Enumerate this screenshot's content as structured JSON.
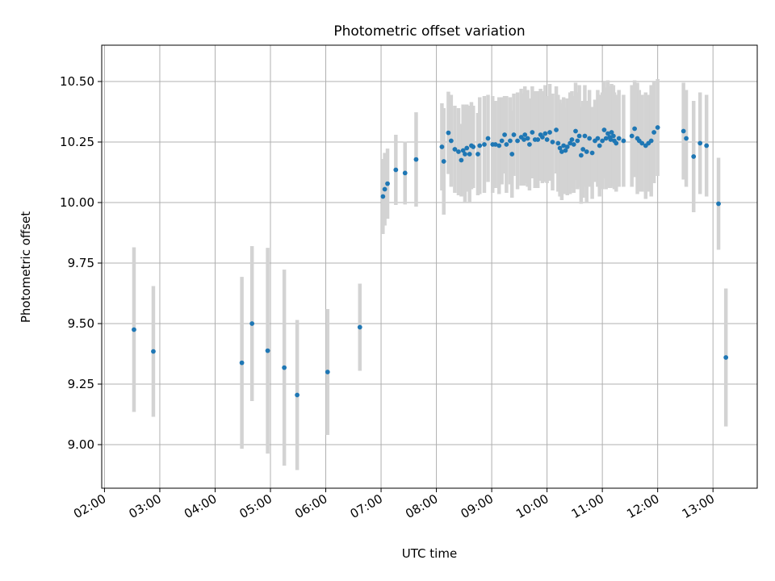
{
  "chart_data": {
    "type": "scatter",
    "title": "Photometric offset variation",
    "xlabel": "UTC time",
    "ylabel": "Photometric offset",
    "x_format": "HH:MM",
    "xlim": [
      "01:57",
      "13:48"
    ],
    "ylim": [
      8.82,
      10.65
    ],
    "xticks": [
      "02:00",
      "03:00",
      "04:00",
      "05:00",
      "06:00",
      "07:00",
      "08:00",
      "09:00",
      "10:00",
      "11:00",
      "12:00",
      "13:00"
    ],
    "yticks": [
      "9.00",
      "9.25",
      "9.50",
      "9.75",
      "10.00",
      "10.25",
      "10.50"
    ],
    "grid": true,
    "error_bars": true,
    "colors": {
      "points": "#1f77b4",
      "error_bars": "#d3d3d3",
      "grid": "#b0b0b0"
    },
    "points": [
      [
        "02:32",
        9.475,
        0.34
      ],
      [
        "02:53",
        9.385,
        0.27
      ],
      [
        "04:29",
        9.338,
        0.355
      ],
      [
        "04:40",
        9.5,
        0.32
      ],
      [
        "04:57",
        9.388,
        0.425
      ],
      [
        "05:15",
        9.318,
        0.405
      ],
      [
        "05:29",
        9.205,
        0.31
      ],
      [
        "06:02",
        9.3,
        0.26
      ],
      [
        "06:37",
        9.485,
        0.18
      ],
      [
        "07:02",
        10.025,
        0.155
      ],
      [
        "07:04",
        10.055,
        0.15
      ],
      [
        "07:07",
        10.078,
        0.145
      ],
      [
        "07:16",
        10.135,
        0.145
      ],
      [
        "07:26",
        10.122,
        0.13
      ],
      [
        "07:38",
        10.178,
        0.195
      ],
      [
        "08:06",
        10.23,
        0.18
      ],
      [
        "08:08",
        10.17,
        0.22
      ],
      [
        "08:13",
        10.288,
        0.17
      ],
      [
        "08:16",
        10.255,
        0.19
      ],
      [
        "08:20",
        10.22,
        0.18
      ],
      [
        "08:24",
        10.21,
        0.18
      ],
      [
        "08:27",
        10.175,
        0.15
      ],
      [
        "08:29",
        10.215,
        0.19
      ],
      [
        "08:31",
        10.2,
        0.2
      ],
      [
        "08:33",
        10.225,
        0.18
      ],
      [
        "08:36",
        10.2,
        0.2
      ],
      [
        "08:38",
        10.235,
        0.18
      ],
      [
        "08:40",
        10.23,
        0.17
      ],
      [
        "08:45",
        10.2,
        0.17
      ],
      [
        "08:47",
        10.235,
        0.2
      ],
      [
        "08:52",
        10.24,
        0.2
      ],
      [
        "08:56",
        10.265,
        0.18
      ],
      [
        "09:01",
        10.24,
        0.2
      ],
      [
        "09:04",
        10.24,
        0.18
      ],
      [
        "09:08",
        10.235,
        0.2
      ],
      [
        "09:11",
        10.255,
        0.18
      ],
      [
        "09:14",
        10.28,
        0.16
      ],
      [
        "09:16",
        10.24,
        0.2
      ],
      [
        "09:20",
        10.255,
        0.18
      ],
      [
        "09:22",
        10.2,
        0.18
      ],
      [
        "09:24",
        10.28,
        0.17
      ],
      [
        "09:28",
        10.255,
        0.2
      ],
      [
        "09:32",
        10.27,
        0.2
      ],
      [
        "09:35",
        10.26,
        0.19
      ],
      [
        "09:36",
        10.28,
        0.2
      ],
      [
        "09:39",
        10.265,
        0.2
      ],
      [
        "09:41",
        10.24,
        0.19
      ],
      [
        "09:44",
        10.29,
        0.19
      ],
      [
        "09:47",
        10.26,
        0.2
      ],
      [
        "09:50",
        10.26,
        0.2
      ],
      [
        "09:53",
        10.28,
        0.19
      ],
      [
        "09:55",
        10.27,
        0.19
      ],
      [
        "09:58",
        10.285,
        0.2
      ],
      [
        "10:00",
        10.26,
        0.18
      ],
      [
        "10:03",
        10.29,
        0.2
      ],
      [
        "10:06",
        10.25,
        0.2
      ],
      [
        "10:10",
        10.3,
        0.18
      ],
      [
        "10:12",
        10.245,
        0.2
      ],
      [
        "10:14",
        10.225,
        0.2
      ],
      [
        "10:16",
        10.21,
        0.2
      ],
      [
        "10:18",
        10.235,
        0.2
      ],
      [
        "10:20",
        10.215,
        0.18
      ],
      [
        "10:22",
        10.23,
        0.2
      ],
      [
        "10:25",
        10.245,
        0.21
      ],
      [
        "10:27",
        10.26,
        0.2
      ],
      [
        "10:29",
        10.24,
        0.2
      ],
      [
        "10:31",
        10.295,
        0.2
      ],
      [
        "10:33",
        10.255,
        0.2
      ],
      [
        "10:35",
        10.275,
        0.21
      ],
      [
        "10:37",
        10.195,
        0.2
      ],
      [
        "10:39",
        10.22,
        0.2
      ],
      [
        "10:41",
        10.275,
        0.21
      ],
      [
        "10:43",
        10.21,
        0.21
      ],
      [
        "10:46",
        10.265,
        0.2
      ],
      [
        "10:49",
        10.205,
        0.19
      ],
      [
        "10:52",
        10.255,
        0.17
      ],
      [
        "10:55",
        10.265,
        0.2
      ],
      [
        "10:57",
        10.235,
        0.21
      ],
      [
        "11:00",
        10.255,
        0.2
      ],
      [
        "11:02",
        10.3,
        0.2
      ],
      [
        "11:04",
        10.265,
        0.21
      ],
      [
        "11:06",
        10.285,
        0.22
      ],
      [
        "11:08",
        10.27,
        0.21
      ],
      [
        "11:09",
        10.26,
        0.2
      ],
      [
        "11:10",
        10.29,
        0.2
      ],
      [
        "11:12",
        10.275,
        0.21
      ],
      [
        "11:13",
        10.255,
        0.2
      ],
      [
        "11:15",
        10.245,
        0.2
      ],
      [
        "11:18",
        10.265,
        0.2
      ],
      [
        "11:23",
        10.255,
        0.19
      ],
      [
        "11:32",
        10.275,
        0.21
      ],
      [
        "11:35",
        10.305,
        0.2
      ],
      [
        "11:38",
        10.265,
        0.23
      ],
      [
        "11:40",
        10.255,
        0.21
      ],
      [
        "11:43",
        10.245,
        0.2
      ],
      [
        "11:47",
        10.235,
        0.22
      ],
      [
        "11:50",
        10.245,
        0.2
      ],
      [
        "11:53",
        10.255,
        0.23
      ],
      [
        "11:56",
        10.29,
        0.21
      ],
      [
        "12:00",
        10.31,
        0.2
      ],
      [
        "12:28",
        10.295,
        0.2
      ],
      [
        "12:31",
        10.265,
        0.2
      ],
      [
        "12:39",
        10.19,
        0.23
      ],
      [
        "12:46",
        10.245,
        0.21
      ],
      [
        "12:53",
        10.235,
        0.21
      ],
      [
        "13:06",
        9.995,
        0.19
      ],
      [
        "13:14",
        9.36,
        0.285
      ]
    ]
  }
}
